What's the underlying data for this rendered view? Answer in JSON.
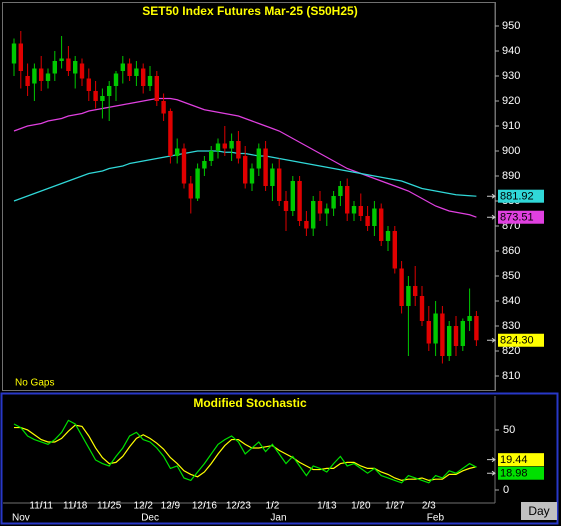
{
  "chart_data": [
    {
      "type": "candlestick",
      "title": "SET50 Index Futures Mar-25 (S50H25)",
      "note": "No Gaps",
      "up_color": "#00c800",
      "down_color": "#e00000",
      "open": [
        935,
        943,
        930,
        927,
        933,
        928,
        931,
        936,
        937,
        931,
        935,
        929,
        924,
        920,
        922,
        926,
        932,
        935,
        930,
        933,
        926,
        930,
        920,
        916,
        898,
        901,
        887,
        881,
        893,
        896,
        900,
        903,
        901,
        904,
        898,
        887,
        893,
        901,
        886,
        893,
        880,
        876,
        888,
        872,
        869,
        880,
        875,
        877,
        882,
        886,
        875,
        878,
        874,
        870,
        877,
        864,
        868,
        853,
        838,
        846,
        842,
        832,
        823,
        835,
        818,
        830,
        822,
        832,
        834
      ],
      "high": [
        945,
        948,
        935,
        935,
        938,
        933,
        940,
        946,
        942,
        938,
        937,
        933,
        928,
        925,
        928,
        932,
        938,
        937,
        936,
        935,
        934,
        932,
        923,
        917,
        905,
        903,
        890,
        895,
        898,
        902,
        905,
        910,
        907,
        908,
        902,
        895,
        903,
        904,
        895,
        897,
        884,
        890,
        890,
        876,
        882,
        884,
        879,
        884,
        888,
        889,
        880,
        883,
        878,
        880,
        879,
        870,
        870,
        856,
        850,
        854,
        846,
        838,
        840,
        838,
        832,
        834,
        833,
        845,
        836
      ],
      "low": [
        930,
        925,
        922,
        920,
        924,
        925,
        928,
        933,
        930,
        925,
        926,
        920,
        917,
        913,
        912,
        920,
        927,
        928,
        926,
        923,
        924,
        918,
        912,
        895,
        895,
        885,
        875,
        880,
        890,
        894,
        897,
        898,
        896,
        895,
        885,
        884,
        890,
        884,
        880,
        878,
        868,
        874,
        870,
        866,
        866,
        872,
        870,
        874,
        878,
        872,
        872,
        872,
        868,
        866,
        862,
        860,
        851,
        835,
        818,
        838,
        830,
        820,
        818,
        815,
        816,
        818,
        820,
        828,
        822
      ],
      "close": [
        943,
        932,
        926,
        933,
        928,
        931,
        936,
        937,
        932,
        936,
        929,
        924,
        920,
        922,
        926,
        931,
        935,
        930,
        933,
        926,
        930,
        920,
        915,
        898,
        901,
        887,
        881,
        893,
        896,
        900,
        903,
        901,
        904,
        897,
        887,
        893,
        901,
        886,
        893,
        880,
        876,
        888,
        872,
        869,
        880,
        875,
        877,
        882,
        886,
        875,
        878,
        874,
        870,
        877,
        864,
        868,
        853,
        838,
        846,
        842,
        832,
        823,
        835,
        818,
        830,
        822,
        832,
        834,
        824.3
      ],
      "close_label": "824.30",
      "close_label_color": "#ffff00",
      "series": [
        {
          "color": "#e040e0",
          "values": [
            908,
            909,
            910,
            910.5,
            911,
            912,
            912.5,
            913,
            914,
            914.5,
            915,
            916,
            916.5,
            917,
            917.5,
            918,
            918.5,
            919,
            919.5,
            920,
            920.5,
            921,
            921,
            921,
            920.5,
            919.5,
            918.5,
            917.5,
            916.5,
            916,
            915.5,
            915,
            914.5,
            914,
            913,
            912,
            911,
            910,
            909,
            908,
            906.5,
            905,
            903.5,
            902,
            900.5,
            899,
            897.5,
            896,
            894.5,
            893,
            892,
            891,
            890,
            889,
            888,
            887,
            886,
            885,
            884,
            882.5,
            881,
            879.5,
            878,
            877,
            876,
            875.5,
            875,
            874.5,
            873.51
          ]
        },
        {
          "color": "#30d8d8",
          "values": [
            880,
            881,
            882,
            883,
            884,
            885,
            886,
            887,
            888,
            889,
            890,
            891,
            891.5,
            892,
            893,
            893.5,
            894,
            895,
            895.5,
            896,
            896.5,
            897,
            897.5,
            898,
            898.5,
            899,
            899.5,
            900,
            900,
            900,
            900,
            899.5,
            899.5,
            899,
            899,
            898.5,
            898,
            898,
            897.5,
            897,
            896.5,
            896,
            895.5,
            895,
            894.5,
            894,
            893.5,
            893,
            892.5,
            892,
            891.5,
            891,
            890.5,
            890,
            889.5,
            889,
            888.5,
            888,
            887,
            886,
            885,
            884.5,
            884,
            883.5,
            883,
            882.5,
            882.3,
            882.1,
            881.92
          ]
        }
      ],
      "ylim": [
        804.4,
        959.2
      ],
      "yticks": [
        810,
        820,
        830,
        840,
        850,
        860,
        870,
        880,
        890,
        900,
        910,
        920,
        930,
        940,
        950
      ]
    },
    {
      "type": "line",
      "title": "Modified Stochastic",
      "x_label": "Day",
      "categories": [
        null,
        null,
        null,
        null,
        "11/11",
        null,
        null,
        null,
        null,
        "11/18",
        null,
        null,
        null,
        null,
        "11/25",
        null,
        null,
        null,
        null,
        "12/2",
        null,
        null,
        null,
        "12/9",
        null,
        null,
        null,
        null,
        "12/16",
        null,
        null,
        null,
        null,
        "12/23",
        null,
        null,
        null,
        null,
        "1/2",
        null,
        null,
        null,
        null,
        null,
        null,
        null,
        "1/13",
        null,
        null,
        null,
        null,
        "1/20",
        null,
        null,
        null,
        null,
        "1/27",
        null,
        null,
        null,
        null,
        "2/3",
        null,
        null,
        null,
        null,
        null,
        null,
        null
      ],
      "months": [
        "Nov",
        null,
        null,
        null,
        null,
        null,
        null,
        null,
        null,
        null,
        null,
        null,
        null,
        null,
        null,
        null,
        null,
        null,
        null,
        "Dec",
        null,
        null,
        null,
        null,
        null,
        null,
        null,
        null,
        null,
        null,
        null,
        null,
        null,
        null,
        null,
        null,
        null,
        null,
        "Jan",
        null,
        null,
        null,
        null,
        null,
        null,
        null,
        null,
        null,
        null,
        null,
        null,
        null,
        null,
        null,
        null,
        null,
        null,
        null,
        null,
        null,
        null,
        "Feb",
        null,
        null,
        null,
        null,
        null,
        null,
        null
      ],
      "series": [
        {
          "color": "#ffff00",
          "values": [
            52,
            52,
            50,
            46,
            42,
            40,
            40,
            43,
            49,
            54,
            53,
            45,
            35,
            27,
            22,
            23,
            28,
            36,
            43,
            46,
            43,
            39,
            34,
            27,
            22,
            16,
            13,
            11,
            15,
            22,
            30,
            37,
            42,
            42,
            38,
            35,
            35,
            36,
            37,
            33,
            30,
            27,
            23,
            20,
            17,
            17,
            18,
            18,
            22,
            23,
            23,
            20,
            18,
            18,
            15,
            13,
            10,
            8,
            9,
            9,
            10,
            8,
            9,
            9,
            13,
            13,
            16,
            18,
            19.44
          ]
        },
        {
          "color": "#00e000",
          "values": [
            55,
            52,
            45,
            42,
            40,
            38,
            42,
            48,
            58,
            55,
            45,
            35,
            25,
            22,
            20,
            28,
            35,
            45,
            48,
            42,
            40,
            35,
            28,
            18,
            20,
            10,
            8,
            15,
            22,
            30,
            38,
            42,
            45,
            40,
            30,
            35,
            40,
            32,
            38,
            30,
            22,
            28,
            20,
            12,
            20,
            18,
            15,
            22,
            28,
            20,
            22,
            18,
            14,
            18,
            12,
            10,
            8,
            6,
            12,
            10,
            8,
            6,
            12,
            10,
            16,
            14,
            18,
            22,
            18.98
          ]
        }
      ],
      "ylim": [
        -12.5,
        78.3
      ],
      "yticks": [
        0,
        50
      ]
    }
  ]
}
